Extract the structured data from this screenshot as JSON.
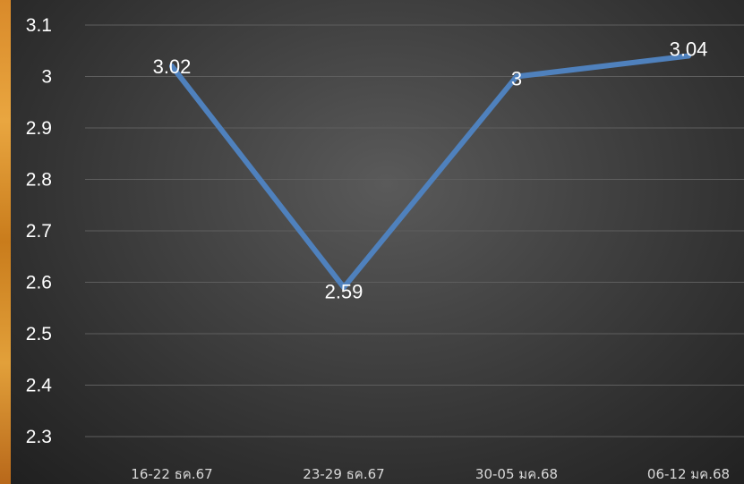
{
  "chart_data": {
    "type": "line",
    "categories": [
      "16-22 ธค.67",
      "23-29 ธค.67",
      "30-05 มค.68",
      "06-12 มค.68"
    ],
    "series": [
      {
        "values": [
          3.02,
          2.59,
          3,
          3.04
        ]
      }
    ],
    "data_labels": [
      "3.02",
      "2.59",
      "3",
      "3.04"
    ],
    "y_ticks": [
      "2.3",
      "2.4",
      "2.5",
      "2.6",
      "2.7",
      "2.8",
      "2.9",
      "3",
      "3.1"
    ],
    "ylim": [
      2.3,
      3.1
    ],
    "grid": true,
    "colors": {
      "line": "#4f81bd",
      "grid": "#5e5e5e",
      "text": "#ffffff"
    }
  }
}
